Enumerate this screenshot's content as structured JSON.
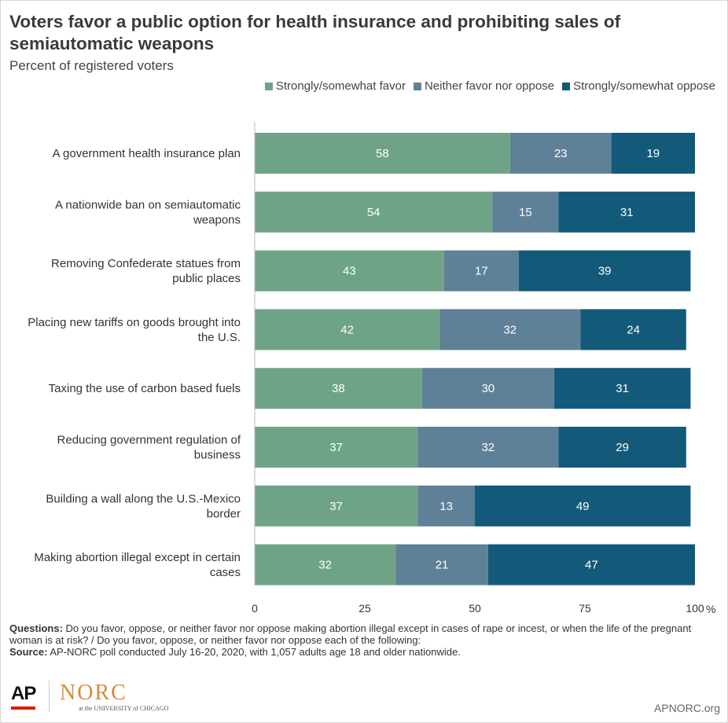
{
  "title": "Voters favor a public option for health insurance and prohibiting sales of semiautomatic weapons",
  "subtitle": "Percent of registered voters",
  "colors": {
    "favor": "#6fa387",
    "neither": "#5f8197",
    "oppose": "#135a7a"
  },
  "legend": [
    {
      "key": "favor",
      "label": "Strongly/somewhat favor"
    },
    {
      "key": "neither",
      "label": "Neither favor nor oppose"
    },
    {
      "key": "oppose",
      "label": "Strongly/somewhat oppose"
    }
  ],
  "chart_data": {
    "type": "bar",
    "orientation": "horizontal",
    "stacked": true,
    "categories": [
      "A government health insurance plan",
      "A nationwide ban on semiautomatic weapons",
      "Removing Confederate statues from public places",
      "Placing new tariffs on goods brought into the U.S.",
      "Taxing the use of carbon based fuels",
      "Reducing government regulation of business",
      "Building a wall along the U.S.-Mexico border",
      "Making abortion illegal except in certain cases"
    ],
    "category_lines": [
      [
        "A government health insurance plan"
      ],
      [
        "A nationwide ban on semiautomatic",
        "weapons"
      ],
      [
        "Removing Confederate statues from",
        "public places"
      ],
      [
        "Placing new tariffs on goods brought into",
        "the U.S."
      ],
      [
        "Taxing the use of carbon based fuels"
      ],
      [
        "Reducing government regulation of",
        "business"
      ],
      [
        "Building a wall along the U.S.-Mexico",
        "border"
      ],
      [
        "Making abortion illegal except in certain",
        "cases"
      ]
    ],
    "series": [
      {
        "name": "Strongly/somewhat favor",
        "key": "favor",
        "values": [
          58,
          54,
          43,
          42,
          38,
          37,
          37,
          32
        ]
      },
      {
        "name": "Neither favor nor oppose",
        "key": "neither",
        "values": [
          23,
          15,
          17,
          32,
          30,
          32,
          13,
          21
        ]
      },
      {
        "name": "Strongly/somewhat oppose",
        "key": "oppose",
        "values": [
          19,
          31,
          39,
          24,
          31,
          29,
          49,
          47
        ]
      }
    ],
    "xlim": [
      0,
      100
    ],
    "xticks": [
      "0",
      "25",
      "50",
      "75",
      "100"
    ],
    "xunit": "%",
    "legend_position": "top-right",
    "grid": false
  },
  "notes": {
    "questions_label": "Questions:",
    "questions_text": "Do you favor, oppose, or neither favor nor oppose making abortion illegal except in cases of rape or incest, or when the life of the pregnant woman is at risk? / Do you favor, oppose, or neither favor nor oppose each of the following:",
    "source_label": "Source:",
    "source_text": "AP-NORC poll conducted July 16-20, 2020, with 1,057 adults age 18 and older nationwide."
  },
  "footer": {
    "ap_logo": "AP",
    "norc_logo": "NORC",
    "norc_sub": "at the UNIVERSITY of CHICAGO",
    "site": "APNORC.org"
  }
}
